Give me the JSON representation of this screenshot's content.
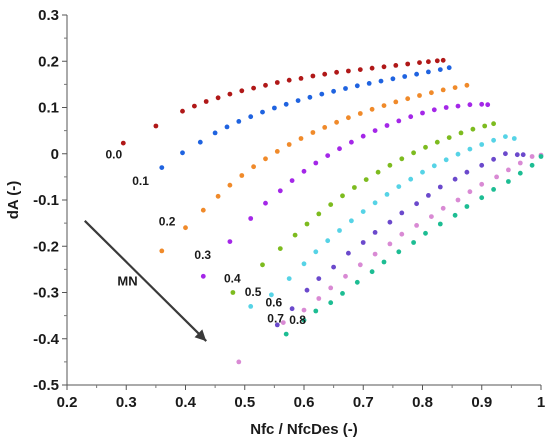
{
  "chart_data": {
    "type": "scatter",
    "xlabel": "Nfc / NfcDes (-)",
    "ylabel": "dA (-)",
    "xlim": [
      0.2,
      1.0
    ],
    "ylim": [
      -0.5,
      0.3
    ],
    "xticks": [
      "0.2",
      "0.3",
      "0.4",
      "0.5",
      "0.6",
      "0.7",
      "0.8",
      "0.9",
      "1"
    ],
    "yticks": [
      "0.3",
      "0.2",
      "0.1",
      "0",
      "-0.1",
      "-0.2",
      "-0.3",
      "-0.4",
      "-0.5"
    ],
    "grid": false,
    "annotation": {
      "text": "MN",
      "arrow_from": [
        0.23,
        -0.145
      ],
      "arrow_to": [
        0.435,
        -0.405
      ]
    },
    "series": [
      {
        "name": "0.0",
        "color": "#b01818",
        "label_at": [
          0.265,
          -0.01
        ],
        "points": [
          [
            0.295,
            0.023
          ],
          [
            0.35,
            0.06
          ],
          [
            0.395,
            0.092
          ],
          [
            0.415,
            0.103
          ],
          [
            0.435,
            0.113
          ],
          [
            0.455,
            0.121
          ],
          [
            0.475,
            0.129
          ],
          [
            0.495,
            0.136
          ],
          [
            0.515,
            0.142
          ],
          [
            0.535,
            0.148
          ],
          [
            0.555,
            0.154
          ],
          [
            0.575,
            0.159
          ],
          [
            0.595,
            0.163
          ],
          [
            0.615,
            0.168
          ],
          [
            0.635,
            0.172
          ],
          [
            0.655,
            0.176
          ],
          [
            0.675,
            0.179
          ],
          [
            0.695,
            0.182
          ],
          [
            0.715,
            0.185
          ],
          [
            0.735,
            0.188
          ],
          [
            0.755,
            0.191
          ],
          [
            0.775,
            0.194
          ],
          [
            0.795,
            0.197
          ],
          [
            0.81,
            0.199
          ],
          [
            0.825,
            0.201
          ],
          [
            0.835,
            0.202
          ]
        ]
      },
      {
        "name": "0.1",
        "color": "#1f63e0",
        "label_at": [
          0.31,
          -0.068
        ],
        "points": [
          [
            0.36,
            -0.03
          ],
          [
            0.395,
            0.002
          ],
          [
            0.425,
            0.025
          ],
          [
            0.45,
            0.045
          ],
          [
            0.47,
            0.058
          ],
          [
            0.49,
            0.07
          ],
          [
            0.51,
            0.08
          ],
          [
            0.53,
            0.09
          ],
          [
            0.55,
            0.099
          ],
          [
            0.57,
            0.107
          ],
          [
            0.59,
            0.115
          ],
          [
            0.61,
            0.122
          ],
          [
            0.63,
            0.129
          ],
          [
            0.65,
            0.135
          ],
          [
            0.67,
            0.141
          ],
          [
            0.69,
            0.147
          ],
          [
            0.71,
            0.152
          ],
          [
            0.73,
            0.157
          ],
          [
            0.75,
            0.162
          ],
          [
            0.77,
            0.167
          ],
          [
            0.79,
            0.172
          ],
          [
            0.81,
            0.177
          ],
          [
            0.83,
            0.182
          ],
          [
            0.845,
            0.186
          ]
        ]
      },
      {
        "name": "0.2",
        "color": "#f08a2a",
        "label_at": [
          0.355,
          -0.155
        ],
        "points": [
          [
            0.36,
            -0.21
          ],
          [
            0.4,
            -0.16
          ],
          [
            0.43,
            -0.122
          ],
          [
            0.455,
            -0.092
          ],
          [
            0.475,
            -0.068
          ],
          [
            0.495,
            -0.047
          ],
          [
            0.515,
            -0.028
          ],
          [
            0.535,
            -0.011
          ],
          [
            0.555,
            0.005
          ],
          [
            0.575,
            0.02
          ],
          [
            0.595,
            0.033
          ],
          [
            0.615,
            0.046
          ],
          [
            0.635,
            0.057
          ],
          [
            0.655,
            0.068
          ],
          [
            0.675,
            0.078
          ],
          [
            0.695,
            0.087
          ],
          [
            0.715,
            0.096
          ],
          [
            0.735,
            0.104
          ],
          [
            0.755,
            0.112
          ],
          [
            0.775,
            0.119
          ],
          [
            0.795,
            0.126
          ],
          [
            0.815,
            0.132
          ],
          [
            0.835,
            0.138
          ],
          [
            0.855,
            0.143
          ],
          [
            0.875,
            0.148
          ]
        ]
      },
      {
        "name": "0.3",
        "color": "#a427e8",
        "label_at": [
          0.415,
          -0.228
        ],
        "points": [
          [
            0.43,
            -0.265
          ],
          [
            0.475,
            -0.19
          ],
          [
            0.51,
            -0.14
          ],
          [
            0.535,
            -0.107
          ],
          [
            0.56,
            -0.08
          ],
          [
            0.58,
            -0.058
          ],
          [
            0.6,
            -0.038
          ],
          [
            0.62,
            -0.02
          ],
          [
            0.64,
            -0.004
          ],
          [
            0.66,
            0.011
          ],
          [
            0.68,
            0.025
          ],
          [
            0.7,
            0.038
          ],
          [
            0.72,
            0.05
          ],
          [
            0.74,
            0.061
          ],
          [
            0.76,
            0.071
          ],
          [
            0.78,
            0.08
          ],
          [
            0.8,
            0.088
          ],
          [
            0.82,
            0.095
          ],
          [
            0.84,
            0.1
          ],
          [
            0.86,
            0.103
          ],
          [
            0.88,
            0.106
          ],
          [
            0.9,
            0.107
          ],
          [
            0.91,
            0.106
          ]
        ]
      },
      {
        "name": "0.4",
        "color": "#7dbb1f",
        "label_at": [
          0.465,
          -0.278
        ],
        "points": [
          [
            0.48,
            -0.3
          ],
          [
            0.53,
            -0.24
          ],
          [
            0.56,
            -0.205
          ],
          [
            0.585,
            -0.176
          ],
          [
            0.605,
            -0.152
          ],
          [
            0.625,
            -0.13
          ],
          [
            0.645,
            -0.11
          ],
          [
            0.665,
            -0.091
          ],
          [
            0.685,
            -0.073
          ],
          [
            0.705,
            -0.056
          ],
          [
            0.725,
            -0.04
          ],
          [
            0.745,
            -0.025
          ],
          [
            0.765,
            -0.011
          ],
          [
            0.785,
            0.002
          ],
          [
            0.805,
            0.014
          ],
          [
            0.825,
            0.025
          ],
          [
            0.845,
            0.035
          ],
          [
            0.865,
            0.045
          ],
          [
            0.885,
            0.053
          ],
          [
            0.905,
            0.06
          ],
          [
            0.92,
            0.065
          ]
        ]
      },
      {
        "name": "0.5",
        "color": "#56d3e6",
        "label_at": [
          0.5,
          -0.308
        ],
        "points": [
          [
            0.51,
            -0.33
          ],
          [
            0.545,
            -0.305
          ],
          [
            0.575,
            -0.27
          ],
          [
            0.6,
            -0.238
          ],
          [
            0.62,
            -0.212
          ],
          [
            0.64,
            -0.188
          ],
          [
            0.66,
            -0.166
          ],
          [
            0.68,
            -0.145
          ],
          [
            0.7,
            -0.125
          ],
          [
            0.72,
            -0.106
          ],
          [
            0.74,
            -0.088
          ],
          [
            0.76,
            -0.071
          ],
          [
            0.78,
            -0.055
          ],
          [
            0.8,
            -0.04
          ],
          [
            0.82,
            -0.026
          ],
          [
            0.84,
            -0.013
          ],
          [
            0.86,
            -0.001
          ],
          [
            0.88,
            0.01
          ],
          [
            0.9,
            0.02
          ],
          [
            0.92,
            0.029
          ],
          [
            0.94,
            0.037
          ],
          [
            0.955,
            0.033
          ]
        ]
      },
      {
        "name": "0.6",
        "color": "#6b49cc",
        "label_at": [
          0.535,
          -0.33
        ],
        "points": [
          [
            0.555,
            -0.37
          ],
          [
            0.58,
            -0.335
          ],
          [
            0.605,
            -0.295
          ],
          [
            0.625,
            -0.27
          ],
          [
            0.65,
            -0.245
          ],
          [
            0.675,
            -0.215
          ],
          [
            0.7,
            -0.192
          ],
          [
            0.72,
            -0.17
          ],
          [
            0.745,
            -0.148
          ],
          [
            0.765,
            -0.128
          ],
          [
            0.79,
            -0.108
          ],
          [
            0.81,
            -0.09
          ],
          [
            0.83,
            -0.072
          ],
          [
            0.855,
            -0.055
          ],
          [
            0.875,
            -0.04
          ],
          [
            0.9,
            -0.025
          ],
          [
            0.92,
            -0.012
          ],
          [
            0.94,
            0.0
          ],
          [
            0.96,
            -0.002
          ],
          [
            0.97,
            -0.002
          ]
        ]
      },
      {
        "name": "0.7",
        "color": "#d98ad4",
        "label_at": [
          0.538,
          -0.365
        ],
        "points": [
          [
            0.49,
            -0.45
          ],
          [
            0.565,
            -0.365
          ],
          [
            0.6,
            -0.338
          ],
          [
            0.625,
            -0.313
          ],
          [
            0.645,
            -0.29
          ],
          [
            0.67,
            -0.265
          ],
          [
            0.695,
            -0.24
          ],
          [
            0.72,
            -0.217
          ],
          [
            0.745,
            -0.195
          ],
          [
            0.765,
            -0.174
          ],
          [
            0.79,
            -0.155
          ],
          [
            0.815,
            -0.136
          ],
          [
            0.835,
            -0.118
          ],
          [
            0.86,
            -0.1
          ],
          [
            0.88,
            -0.082
          ],
          [
            0.9,
            -0.066
          ],
          [
            0.925,
            -0.05
          ],
          [
            0.945,
            -0.035
          ],
          [
            0.965,
            -0.02
          ],
          [
            0.985,
            -0.006
          ],
          [
            1.0,
            -0.003
          ]
        ]
      },
      {
        "name": "0.8",
        "color": "#1dbd93",
        "label_at": [
          0.575,
          -0.368
        ],
        "points": [
          [
            0.57,
            -0.39
          ],
          [
            0.6,
            -0.36
          ],
          [
            0.62,
            -0.34
          ],
          [
            0.645,
            -0.322
          ],
          [
            0.665,
            -0.302
          ],
          [
            0.69,
            -0.278
          ],
          [
            0.715,
            -0.255
          ],
          [
            0.735,
            -0.234
          ],
          [
            0.76,
            -0.212
          ],
          [
            0.785,
            -0.192
          ],
          [
            0.805,
            -0.172
          ],
          [
            0.83,
            -0.152
          ],
          [
            0.855,
            -0.133
          ],
          [
            0.875,
            -0.114
          ],
          [
            0.9,
            -0.095
          ],
          [
            0.92,
            -0.077
          ],
          [
            0.945,
            -0.06
          ],
          [
            0.965,
            -0.042
          ],
          [
            0.985,
            -0.025
          ],
          [
            1.0,
            -0.006
          ]
        ]
      }
    ]
  }
}
